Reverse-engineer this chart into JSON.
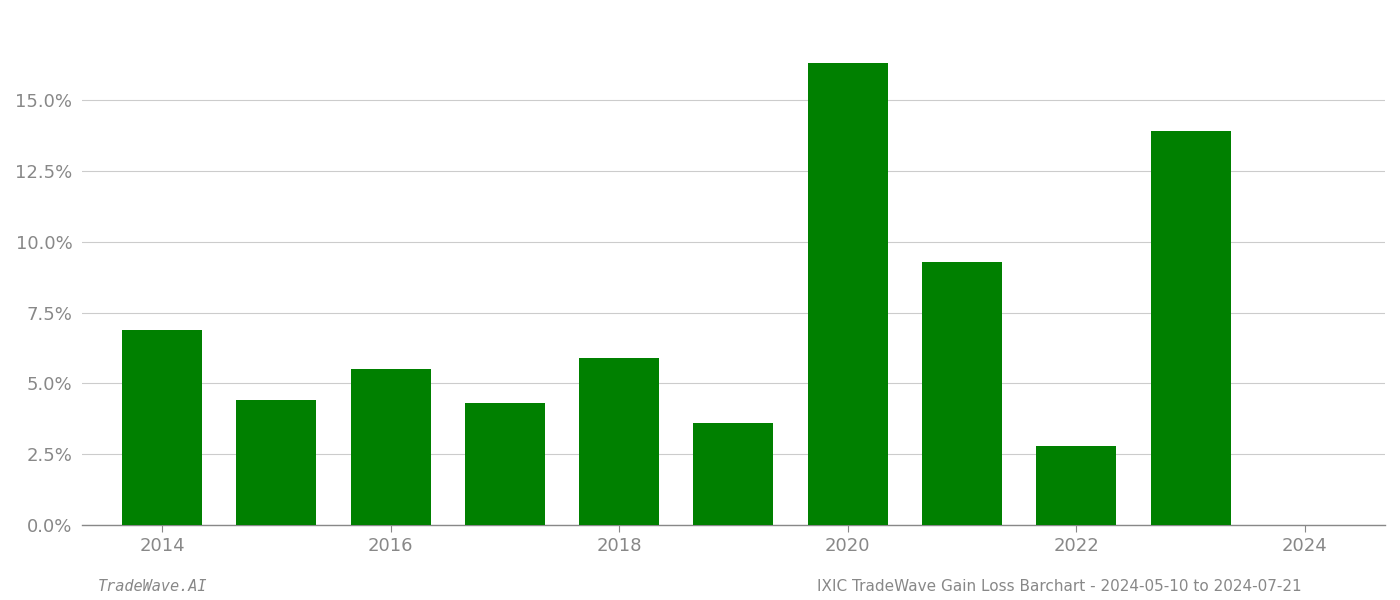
{
  "years": [
    2014,
    2015,
    2016,
    2017,
    2018,
    2019,
    2020,
    2021,
    2022,
    2023,
    2024
  ],
  "values": [
    0.069,
    0.044,
    0.055,
    0.043,
    0.059,
    0.036,
    0.163,
    0.093,
    0.028,
    0.139,
    0.0
  ],
  "bar_color": "#008000",
  "background_color": "#ffffff",
  "grid_color": "#cccccc",
  "axis_color": "#888888",
  "tick_color": "#888888",
  "footer_left": "TradeWave.AI",
  "footer_right": "IXIC TradeWave Gain Loss Barchart - 2024-05-10 to 2024-07-21",
  "ylim": [
    0,
    0.18
  ],
  "yticks": [
    0.0,
    0.025,
    0.05,
    0.075,
    0.1,
    0.125,
    0.15
  ],
  "xticks": [
    2014,
    2016,
    2018,
    2020,
    2022,
    2024
  ],
  "bar_width": 0.7,
  "xlim": [
    2013.3,
    2024.7
  ],
  "figsize": [
    14.0,
    6.0
  ],
  "dpi": 100
}
